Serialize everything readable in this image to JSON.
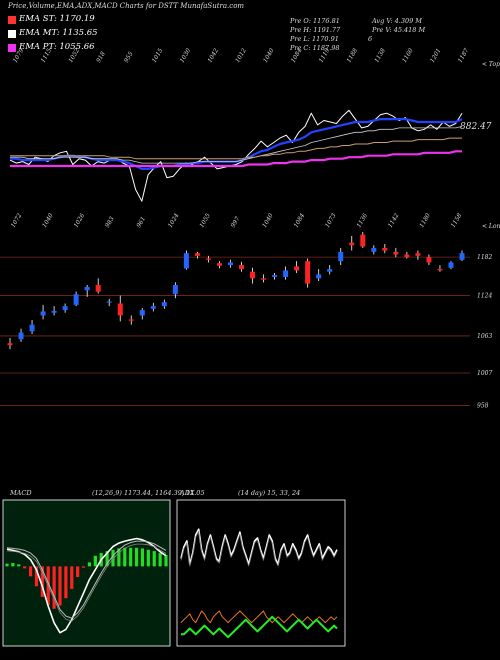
{
  "title": "Price,Volume,EMA,ADX,MACD Charts for DSTT MunafaSutra.com",
  "legend": [
    {
      "label": "EMA ST: 1170.19",
      "color": "#ff3333"
    },
    {
      "label": "EMA MT: 1135.65",
      "color": "#ffffff"
    },
    {
      "label": "EMA PT: 1055.66",
      "color": "#ee33ee"
    }
  ],
  "ohlc": {
    "open": "Pre  O: 1176.81",
    "high": "Pre  H: 1191.77",
    "low": "Pre  L: 1170.91",
    "close": "Pre  C: 1187.98",
    "avg_vol": "Avg V: 4.309  M",
    "pre_vol": "Pre  V: 45.418  M",
    "flag": "6"
  },
  "macd_label": "MACD",
  "macd_values": "(12,26,9) 1173.44, 1164.39, 11.05",
  "adx_label": "ADX",
  "adx_values": "(14  day) 15, 33, 24",
  "chart_data": [
    {
      "type": "line",
      "panel": "volume-ema",
      "x_labels": [
        "1079",
        "1115",
        "1052",
        "918",
        "955",
        "1015",
        "1030",
        "1042",
        "1012",
        "1040",
        "1084",
        "1119",
        "1188",
        "1138",
        "1160",
        "1201",
        "1187"
      ],
      "right_label": "< Topo",
      "right_value": "882.47",
      "series": [
        {
          "color": "#ffffff",
          "values": [
            1.4,
            1.2,
            1.3,
            1.1,
            1.6,
            1.5,
            1.3,
            1.7,
            1.9,
            2.0,
            1.1,
            1.5,
            1.4,
            1.0,
            1.3,
            1.2,
            1.4,
            1.5,
            1.2,
            1.0,
            -0.6,
            -1.4,
            0.4,
            0.9,
            1.3,
            0.2,
            0.3,
            0.8,
            1.2,
            1.1,
            1.3,
            1.6,
            1.2,
            0.8,
            0.9,
            1.0,
            1.1,
            1.3,
            1.8,
            2.2,
            2.7,
            2.3,
            2.6,
            2.9,
            3.1,
            2.6,
            3.3,
            3.7,
            4.6,
            3.8,
            4.1,
            4.0,
            3.9,
            4.4,
            4.8,
            4.2,
            3.6,
            3.7,
            4.1,
            4.5,
            4.6,
            4.4,
            4.1,
            4.3,
            3.6,
            3.4,
            3.5,
            3.8,
            3.5,
            4.0,
            3.7,
            3.9,
            4.6
          ]
        },
        {
          "color": "#2244ff",
          "values": [
            1.5,
            1.5,
            1.4,
            1.4,
            1.4,
            1.4,
            1.4,
            1.5,
            1.6,
            1.7,
            1.7,
            1.6,
            1.6,
            1.5,
            1.4,
            1.4,
            1.4,
            1.4,
            1.3,
            1.2,
            1.0,
            0.8,
            0.8,
            0.9,
            1.0,
            1.0,
            1.0,
            1.1,
            1.1,
            1.2,
            1.2,
            1.3,
            1.3,
            1.3,
            1.3,
            1.3,
            1.3,
            1.4,
            1.6,
            1.8,
            2.0,
            2.1,
            2.3,
            2.5,
            2.6,
            2.7,
            2.8,
            3.0,
            3.3,
            3.4,
            3.5,
            3.6,
            3.7,
            3.8,
            3.9,
            4.0,
            4.0,
            4.0,
            4.1,
            4.2,
            4.2,
            4.2,
            4.2,
            4.2,
            4.1,
            4.0,
            4.0,
            4.0,
            4.0,
            4.0,
            4.0,
            4.0,
            4.2
          ]
        },
        {
          "color": "#cccccc",
          "values": [
            1.6,
            1.6,
            1.6,
            1.5,
            1.5,
            1.5,
            1.5,
            1.5,
            1.6,
            1.6,
            1.6,
            1.6,
            1.6,
            1.5,
            1.5,
            1.5,
            1.5,
            1.5,
            1.4,
            1.4,
            1.3,
            1.2,
            1.2,
            1.2,
            1.2,
            1.2,
            1.2,
            1.2,
            1.2,
            1.2,
            1.3,
            1.3,
            1.3,
            1.3,
            1.3,
            1.3,
            1.3,
            1.4,
            1.5,
            1.6,
            1.7,
            1.8,
            1.9,
            2.0,
            2.1,
            2.2,
            2.3,
            2.4,
            2.6,
            2.7,
            2.8,
            2.9,
            3.0,
            3.1,
            3.2,
            3.3,
            3.3,
            3.4,
            3.4,
            3.5,
            3.5,
            3.5,
            3.6,
            3.6,
            3.6,
            3.6,
            3.6,
            3.6,
            3.6,
            3.6,
            3.6,
            3.6,
            3.7
          ]
        },
        {
          "color": "#c8a070",
          "values": [
            1.7,
            1.7,
            1.7,
            1.7,
            1.7,
            1.7,
            1.7,
            1.7,
            1.7,
            1.7,
            1.7,
            1.7,
            1.7,
            1.7,
            1.7,
            1.7,
            1.6,
            1.6,
            1.6,
            1.6,
            1.5,
            1.5,
            1.5,
            1.5,
            1.5,
            1.5,
            1.5,
            1.5,
            1.5,
            1.5,
            1.5,
            1.5,
            1.5,
            1.5,
            1.5,
            1.5,
            1.5,
            1.5,
            1.6,
            1.6,
            1.7,
            1.7,
            1.8,
            1.8,
            1.9,
            1.9,
            2.0,
            2.0,
            2.1,
            2.2,
            2.2,
            2.3,
            2.3,
            2.4,
            2.4,
            2.5,
            2.5,
            2.5,
            2.6,
            2.6,
            2.6,
            2.7,
            2.7,
            2.7,
            2.7,
            2.8,
            2.8,
            2.8,
            2.8,
            2.8,
            2.9,
            2.9,
            2.9
          ]
        },
        {
          "color": "#ee33ee",
          "values": [
            1.0,
            1.0,
            1.0,
            1.0,
            1.0,
            1.0,
            1.0,
            1.0,
            1.0,
            1.0,
            1.0,
            1.0,
            1.0,
            1.0,
            1.0,
            1.0,
            1.0,
            1.0,
            1.0,
            1.0,
            1.0,
            1.0,
            1.0,
            1.0,
            1.0,
            1.0,
            1.0,
            1.0,
            1.0,
            1.0,
            1.0,
            1.0,
            1.0,
            1.0,
            1.0,
            1.0,
            1.0,
            1.0,
            1.1,
            1.1,
            1.1,
            1.1,
            1.2,
            1.2,
            1.2,
            1.3,
            1.3,
            1.3,
            1.4,
            1.4,
            1.4,
            1.5,
            1.5,
            1.5,
            1.6,
            1.6,
            1.6,
            1.7,
            1.7,
            1.7,
            1.7,
            1.8,
            1.8,
            1.8,
            1.8,
            1.8,
            1.9,
            1.9,
            1.9,
            1.9,
            1.9,
            2.0,
            2.0
          ]
        }
      ]
    },
    {
      "type": "candlestick",
      "panel": "price",
      "x_labels": [
        "1072",
        "1040",
        "1026",
        "983",
        "961",
        "1024",
        "1055",
        "997",
        "1040",
        "1084",
        "1073",
        "1136",
        "1142",
        "1180",
        "1158"
      ],
      "right_label": "< Lonzo",
      "y_ticks": [
        1182,
        1124,
        1063,
        1007,
        958
      ],
      "ylim": [
        930,
        1220
      ],
      "candles": [
        {
          "o": 1052,
          "h": 1060,
          "l": 1043,
          "c": 1049
        },
        {
          "o": 1058,
          "h": 1074,
          "l": 1054,
          "c": 1068
        },
        {
          "o": 1070,
          "h": 1087,
          "l": 1066,
          "c": 1080
        },
        {
          "o": 1094,
          "h": 1110,
          "l": 1088,
          "c": 1100
        },
        {
          "o": 1098,
          "h": 1108,
          "l": 1094,
          "c": 1101
        },
        {
          "o": 1102,
          "h": 1112,
          "l": 1098,
          "c": 1108
        },
        {
          "o": 1110,
          "h": 1130,
          "l": 1108,
          "c": 1126
        },
        {
          "o": 1132,
          "h": 1140,
          "l": 1122,
          "c": 1137
        },
        {
          "o": 1140,
          "h": 1150,
          "l": 1127,
          "c": 1130
        },
        {
          "o": 1114,
          "h": 1119,
          "l": 1108,
          "c": 1115
        },
        {
          "o": 1112,
          "h": 1124,
          "l": 1085,
          "c": 1094
        },
        {
          "o": 1088,
          "h": 1094,
          "l": 1080,
          "c": 1086
        },
        {
          "o": 1094,
          "h": 1105,
          "l": 1088,
          "c": 1102
        },
        {
          "o": 1104,
          "h": 1113,
          "l": 1100,
          "c": 1108
        },
        {
          "o": 1108,
          "h": 1118,
          "l": 1104,
          "c": 1114
        },
        {
          "o": 1126,
          "h": 1144,
          "l": 1120,
          "c": 1140
        },
        {
          "o": 1165,
          "h": 1192,
          "l": 1163,
          "c": 1188
        },
        {
          "o": 1188,
          "h": 1190,
          "l": 1180,
          "c": 1184
        },
        {
          "o": 1180,
          "h": 1184,
          "l": 1174,
          "c": 1178
        },
        {
          "o": 1173,
          "h": 1176,
          "l": 1165,
          "c": 1169
        },
        {
          "o": 1170,
          "h": 1178,
          "l": 1166,
          "c": 1174
        },
        {
          "o": 1170,
          "h": 1175,
          "l": 1160,
          "c": 1164
        },
        {
          "o": 1160,
          "h": 1166,
          "l": 1142,
          "c": 1150
        },
        {
          "o": 1150,
          "h": 1156,
          "l": 1144,
          "c": 1148
        },
        {
          "o": 1152,
          "h": 1158,
          "l": 1148,
          "c": 1155
        },
        {
          "o": 1152,
          "h": 1168,
          "l": 1148,
          "c": 1162
        },
        {
          "o": 1168,
          "h": 1176,
          "l": 1158,
          "c": 1162
        },
        {
          "o": 1176,
          "h": 1180,
          "l": 1136,
          "c": 1142
        },
        {
          "o": 1150,
          "h": 1164,
          "l": 1146,
          "c": 1156
        },
        {
          "o": 1160,
          "h": 1170,
          "l": 1156,
          "c": 1164
        },
        {
          "o": 1176,
          "h": 1196,
          "l": 1170,
          "c": 1190
        },
        {
          "o": 1204,
          "h": 1214,
          "l": 1192,
          "c": 1200
        },
        {
          "o": 1216,
          "h": 1220,
          "l": 1196,
          "c": 1198
        },
        {
          "o": 1190,
          "h": 1200,
          "l": 1186,
          "c": 1196
        },
        {
          "o": 1196,
          "h": 1202,
          "l": 1188,
          "c": 1192
        },
        {
          "o": 1190,
          "h": 1196,
          "l": 1182,
          "c": 1186
        },
        {
          "o": 1186,
          "h": 1190,
          "l": 1180,
          "c": 1182
        },
        {
          "o": 1188,
          "h": 1192,
          "l": 1178,
          "c": 1184
        },
        {
          "o": 1182,
          "h": 1186,
          "l": 1170,
          "c": 1174
        },
        {
          "o": 1164,
          "h": 1170,
          "l": 1160,
          "c": 1162
        },
        {
          "o": 1166,
          "h": 1176,
          "l": 1164,
          "c": 1174
        },
        {
          "o": 1178,
          "h": 1192,
          "l": 1176,
          "c": 1188
        }
      ]
    },
    {
      "type": "line",
      "panel": "macd",
      "ylim": [
        -12,
        10
      ],
      "macd_line": [
        2.6,
        2.4,
        2.2,
        1.8,
        1.0,
        -0.5,
        -3.0,
        -6.0,
        -8.5,
        -10.0,
        -9.5,
        -8.0,
        -6.0,
        -4.0,
        -2.0,
        -0.5,
        1.0,
        2.0,
        3.0,
        3.5,
        3.8,
        4.0,
        4.2,
        4.0,
        3.6,
        3.0,
        2.2,
        1.6
      ],
      "signal_line": [
        2.8,
        2.7,
        2.6,
        2.4,
        2.0,
        1.2,
        -0.5,
        -2.5,
        -4.5,
        -6.5,
        -7.5,
        -7.8,
        -7.0,
        -5.8,
        -4.2,
        -2.6,
        -1.0,
        0.4,
        1.6,
        2.5,
        3.2,
        3.6,
        3.8,
        3.8,
        3.7,
        3.4,
        2.9,
        2.4
      ],
      "histogram": [
        0.4,
        0.5,
        0.3,
        -0.3,
        -1.5,
        -3.0,
        -4.6,
        -5.8,
        -6.4,
        -5.9,
        -4.8,
        -3.4,
        -1.6,
        -0.2,
        0.6,
        1.6,
        2.0,
        2.3,
        2.5,
        2.7,
        2.8,
        2.8,
        2.8,
        2.7,
        2.5,
        2.3,
        2.0,
        1.7
      ]
    },
    {
      "type": "line",
      "panel": "adx",
      "ylim": [
        0,
        50
      ],
      "di_plus": [
        30,
        34,
        36,
        28,
        32,
        38,
        40,
        33,
        30,
        35,
        38,
        34,
        30,
        29,
        34,
        38,
        35,
        31,
        33,
        36,
        39,
        34,
        31,
        28,
        32,
        36,
        37,
        33,
        30,
        34,
        38,
        36,
        30,
        28,
        33,
        35,
        31,
        32,
        35,
        33,
        30,
        32,
        36,
        38,
        34,
        31,
        33,
        35,
        30,
        32,
        34,
        33,
        31,
        33
      ],
      "di_minus": [
        8,
        9,
        10,
        11,
        9,
        8,
        10,
        12,
        11,
        9,
        8,
        10,
        11,
        12,
        10,
        9,
        8,
        9,
        10,
        11,
        12,
        11,
        10,
        9,
        8,
        9,
        10,
        11,
        12,
        10,
        9,
        8,
        9,
        10,
        9,
        8,
        9,
        10,
        11,
        10,
        9,
        8,
        9,
        10,
        9,
        8,
        9,
        10,
        9,
        8,
        9,
        10,
        9,
        10
      ],
      "adx": [
        4,
        4,
        5,
        6,
        5,
        4,
        5,
        6,
        7,
        6,
        5,
        4,
        5,
        6,
        5,
        4,
        3,
        4,
        5,
        6,
        7,
        8,
        9,
        8,
        7,
        6,
        5,
        6,
        7,
        8,
        9,
        10,
        9,
        8,
        7,
        6,
        5,
        6,
        7,
        8,
        9,
        8,
        7,
        6,
        7,
        8,
        9,
        8,
        7,
        6,
        5,
        6,
        7,
        6
      ]
    }
  ]
}
